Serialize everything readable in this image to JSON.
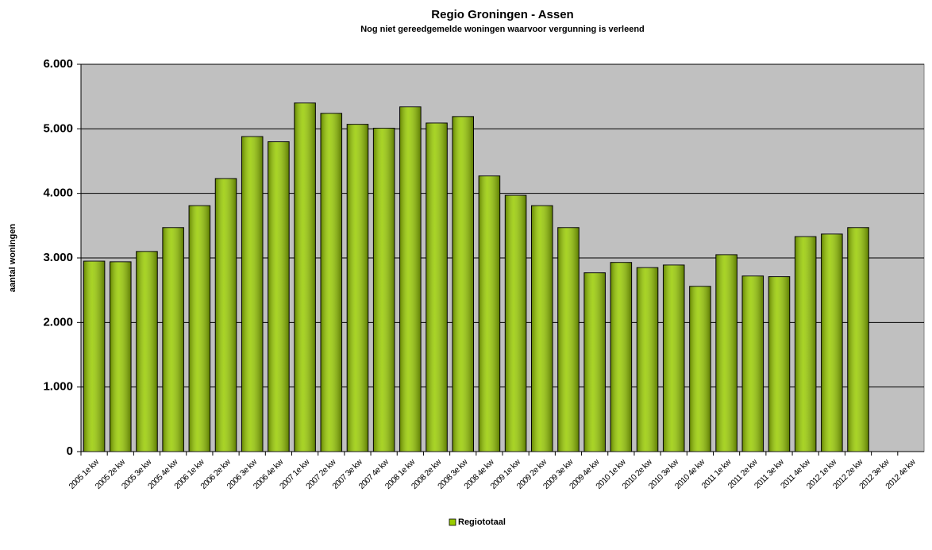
{
  "chart_data": {
    "type": "bar",
    "title": "Regio Groningen - Assen",
    "subtitle": "Nog niet gereedgemelde  woningen waarvoor vergunning is verleend",
    "y_label": "aantal woningen",
    "categories": [
      "2005 1e kw",
      "2005 2e kw",
      "2005 3e kw",
      "2005 4e kw",
      "2006 1e kw",
      "2006 2e kw",
      "2006 3e kw",
      "2006 4e kw",
      "2007 1e kw",
      "2007 2e kw",
      "2007 3e kw",
      "2007 4e kw",
      "2008 1e kw",
      "2008 2e kw",
      "2008 3e kw",
      "2008 4e kw",
      "2009 1e kw",
      "2009 2e kw",
      "2009 3e kw",
      "2009 4e kw",
      "2010 1e kw",
      "2010 2e kw",
      "2010 3e kw",
      "2010 4e kw",
      "2011 1e kw",
      "2011 2e kw",
      "2011 3e kw",
      "2011 4e kw",
      "2012 1e kw",
      "2012 2e kw",
      "2012 3e kw",
      "2012 4e kw"
    ],
    "series": [
      {
        "name": "Regiototaal",
        "color": "#99cc00",
        "values": [
          2950,
          2940,
          3100,
          3470,
          3810,
          4230,
          4880,
          4800,
          5400,
          5240,
          5070,
          5010,
          5340,
          5090,
          5190,
          4270,
          3970,
          3810,
          3470,
          2770,
          2930,
          2850,
          2890,
          2560,
          3050,
          2720,
          2710,
          3330,
          3370,
          3470,
          null,
          null
        ]
      }
    ],
    "ylim": [
      0,
      6000
    ],
    "yticks": [
      0,
      {
        "value": 1000,
        "label": "1.000"
      },
      {
        "value": 2000,
        "label": "2.000"
      },
      {
        "value": 3000,
        "label": "3.000"
      },
      {
        "value": 4000,
        "label": "4.000"
      },
      {
        "value": 5000,
        "label": "5.000"
      },
      {
        "value": 6000,
        "label": "6.000"
      }
    ],
    "grid": true,
    "plot_background": "#c0c0c0",
    "legend": "bottom"
  }
}
